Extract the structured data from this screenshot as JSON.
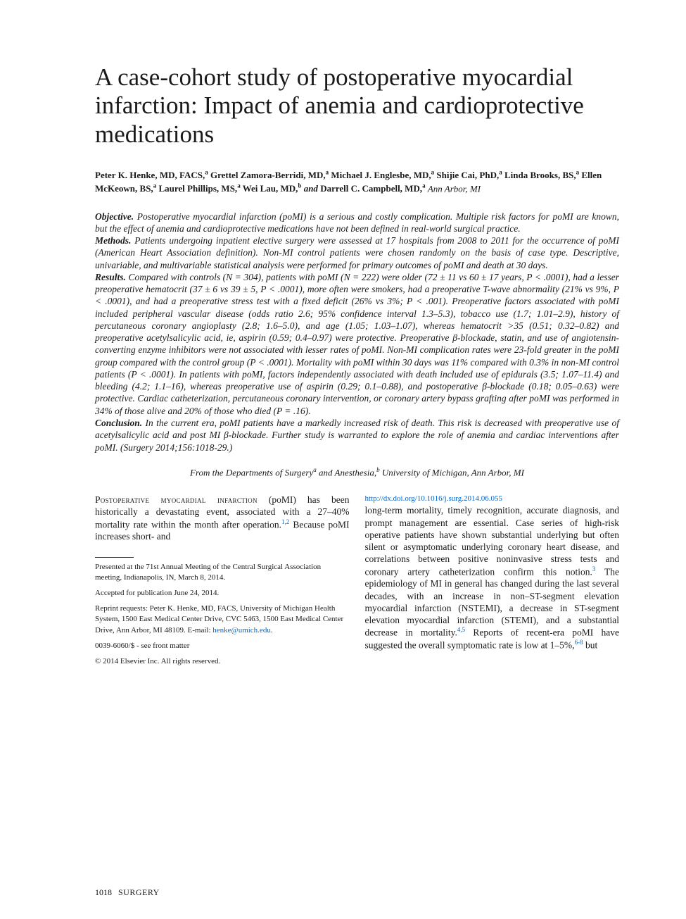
{
  "title": "A case-cohort study of postoperative myocardial infarction: Impact of anemia and cardioprotective medications",
  "authors_html": "<b>Peter K. Henke, MD, FACS,<sup>a</sup> Grettel Zamora-Berridi, MD,<sup>a</sup> Michael J. Englesbe, MD,<sup>a</sup> Shijie Cai, PhD,<sup>a</sup> Linda Brooks, BS,<sup>a</sup> Ellen McKeown, BS,<sup>a</sup> Laurel Phillips, MS,<sup>a</sup> Wei Lau, MD,<sup>b</sup> <i>and</i> Darrell C. Campbell, MD,<sup>a</sup></b> <i>Ann Arbor, MI</i>",
  "abstract": {
    "objective_label": "Objective.",
    "objective": " Postoperative myocardial infarction (poMI) is a serious and costly complication. Multiple risk factors for poMI are known, but the effect of anemia and cardioprotective medications have not been defined in real-world surgical practice.",
    "methods_label": "Methods.",
    "methods": " Patients undergoing inpatient elective surgery were assessed at 17 hospitals from 2008 to 2011 for the occurrence of poMI (American Heart Association definition). Non-MI control patients were chosen randomly on the basis of case type. Descriptive, univariable, and multivariable statistical analysis were performed for primary outcomes of poMI and death at 30 days.",
    "results_label": "Results.",
    "results": " Compared with controls (N = 304), patients with poMI (N = 222) were older (72 ± 11 vs 60 ± 17 years, P < .0001), had a lesser preoperative hematocrit (37 ± 6 vs 39 ± 5, P < .0001), more often were smokers, had a preoperative T-wave abnormality (21% vs 9%, P < .0001), and had a preoperative stress test with a fixed deficit (26% vs 3%; P < .001). Preoperative factors associated with poMI included peripheral vascular disease (odds ratio 2.6; 95% confidence interval 1.3–5.3), tobacco use (1.7; 1.01–2.9), history of percutaneous coronary angioplasty (2.8; 1.6–5.0), and age (1.05; 1.03–1.07), whereas hematocrit >35 (0.51; 0.32–0.82) and preoperative acetylsalicylic acid, ie, aspirin (0.59; 0.4–0.97) were protective. Preoperative β-blockade, statin, and use of angiotensin-converting enzyme inhibitors were not associated with lesser rates of poMI. Non-MI complication rates were 23-fold greater in the poMI group compared with the control group (P < .0001). Mortality with poMI within 30 days was 11% compared with 0.3% in non-MI control patients (P < .0001). In patients with poMI, factors independently associated with death included use of epidurals (3.5; 1.07–11.4) and bleeding (4.2; 1.1–16), whereas preoperative use of aspirin (0.29; 0.1–0.88), and postoperative β-blockade (0.18; 0.05–0.63) were protective. Cardiac catheterization, percutaneous coronary intervention, or coronary artery bypass grafting after poMI was performed in 34% of those alive and 20% of those who died (P = .16).",
    "conclusion_label": "Conclusion.",
    "conclusion": " In the current era, poMI patients have a markedly increased risk of death. This risk is decreased with preoperative use of acetylsalicylic acid and post MI β-blockade. Further study is warranted to explore the role of anemia and cardiac interventions after poMI. (Surgery 2014;156:1018-29.)"
  },
  "affiliation": "From the Departments of Surgery<sup>a</sup> and Anesthesia,<sup>b</sup> University of Michigan, Ann Arbor, MI",
  "body": {
    "left_para_lead": "Postoperative myocardial infarction",
    "left_para_rest": " (poMI) has been historically a devastating event, associated with a 27–40% mortality rate within the month after operation.",
    "ref_12": "1,2",
    "left_para_tail": " Because poMI increases short- and",
    "right_para_1": "long-term mortality, timely recognition, accurate diagnosis, and prompt management are essential. Case series of high-risk operative patients have shown substantial underlying but often silent or asymptomatic underlying coronary heart disease, and correlations between positive noninvasive stress tests and coronary artery catheterization confirm this notion.",
    "ref_3": "3",
    "right_para_2": " The epidemiology of MI in general has changed during the last several decades, with an increase in non–ST-segment elevation myocardial infarction (NSTEMI), a decrease in ST-segment elevation myocardial infarction (STEMI), and a substantial decrease in mortality.",
    "ref_45": "4,5",
    "right_para_3": " Reports of recent-era poMI have suggested the overall symptomatic rate is low at 1–5%,",
    "ref_68": "6-8",
    "right_para_4": " but"
  },
  "footnotes": {
    "presented": "Presented at the 71st Annual Meeting of the Central Surgical Association meeting, Indianapolis, IN, March 8, 2014.",
    "accepted": "Accepted for publication June 24, 2014.",
    "reprint": "Reprint requests: Peter K. Henke, MD, FACS, University of Michigan Health System, 1500 East Medical Center Drive, CVC 5463, 1500 East Medical Center Drive, Ann Arbor, MI 48109. E-mail: ",
    "email": "henke@umich.edu",
    "issn": "0039-6060/$ - see front matter",
    "copyright": "© 2014 Elsevier Inc. All rights reserved.",
    "doi": "http://dx.doi.org/10.1016/j.surg.2014.06.055"
  },
  "pagefoot": {
    "number": "1018",
    "journal": "SURGERY"
  }
}
